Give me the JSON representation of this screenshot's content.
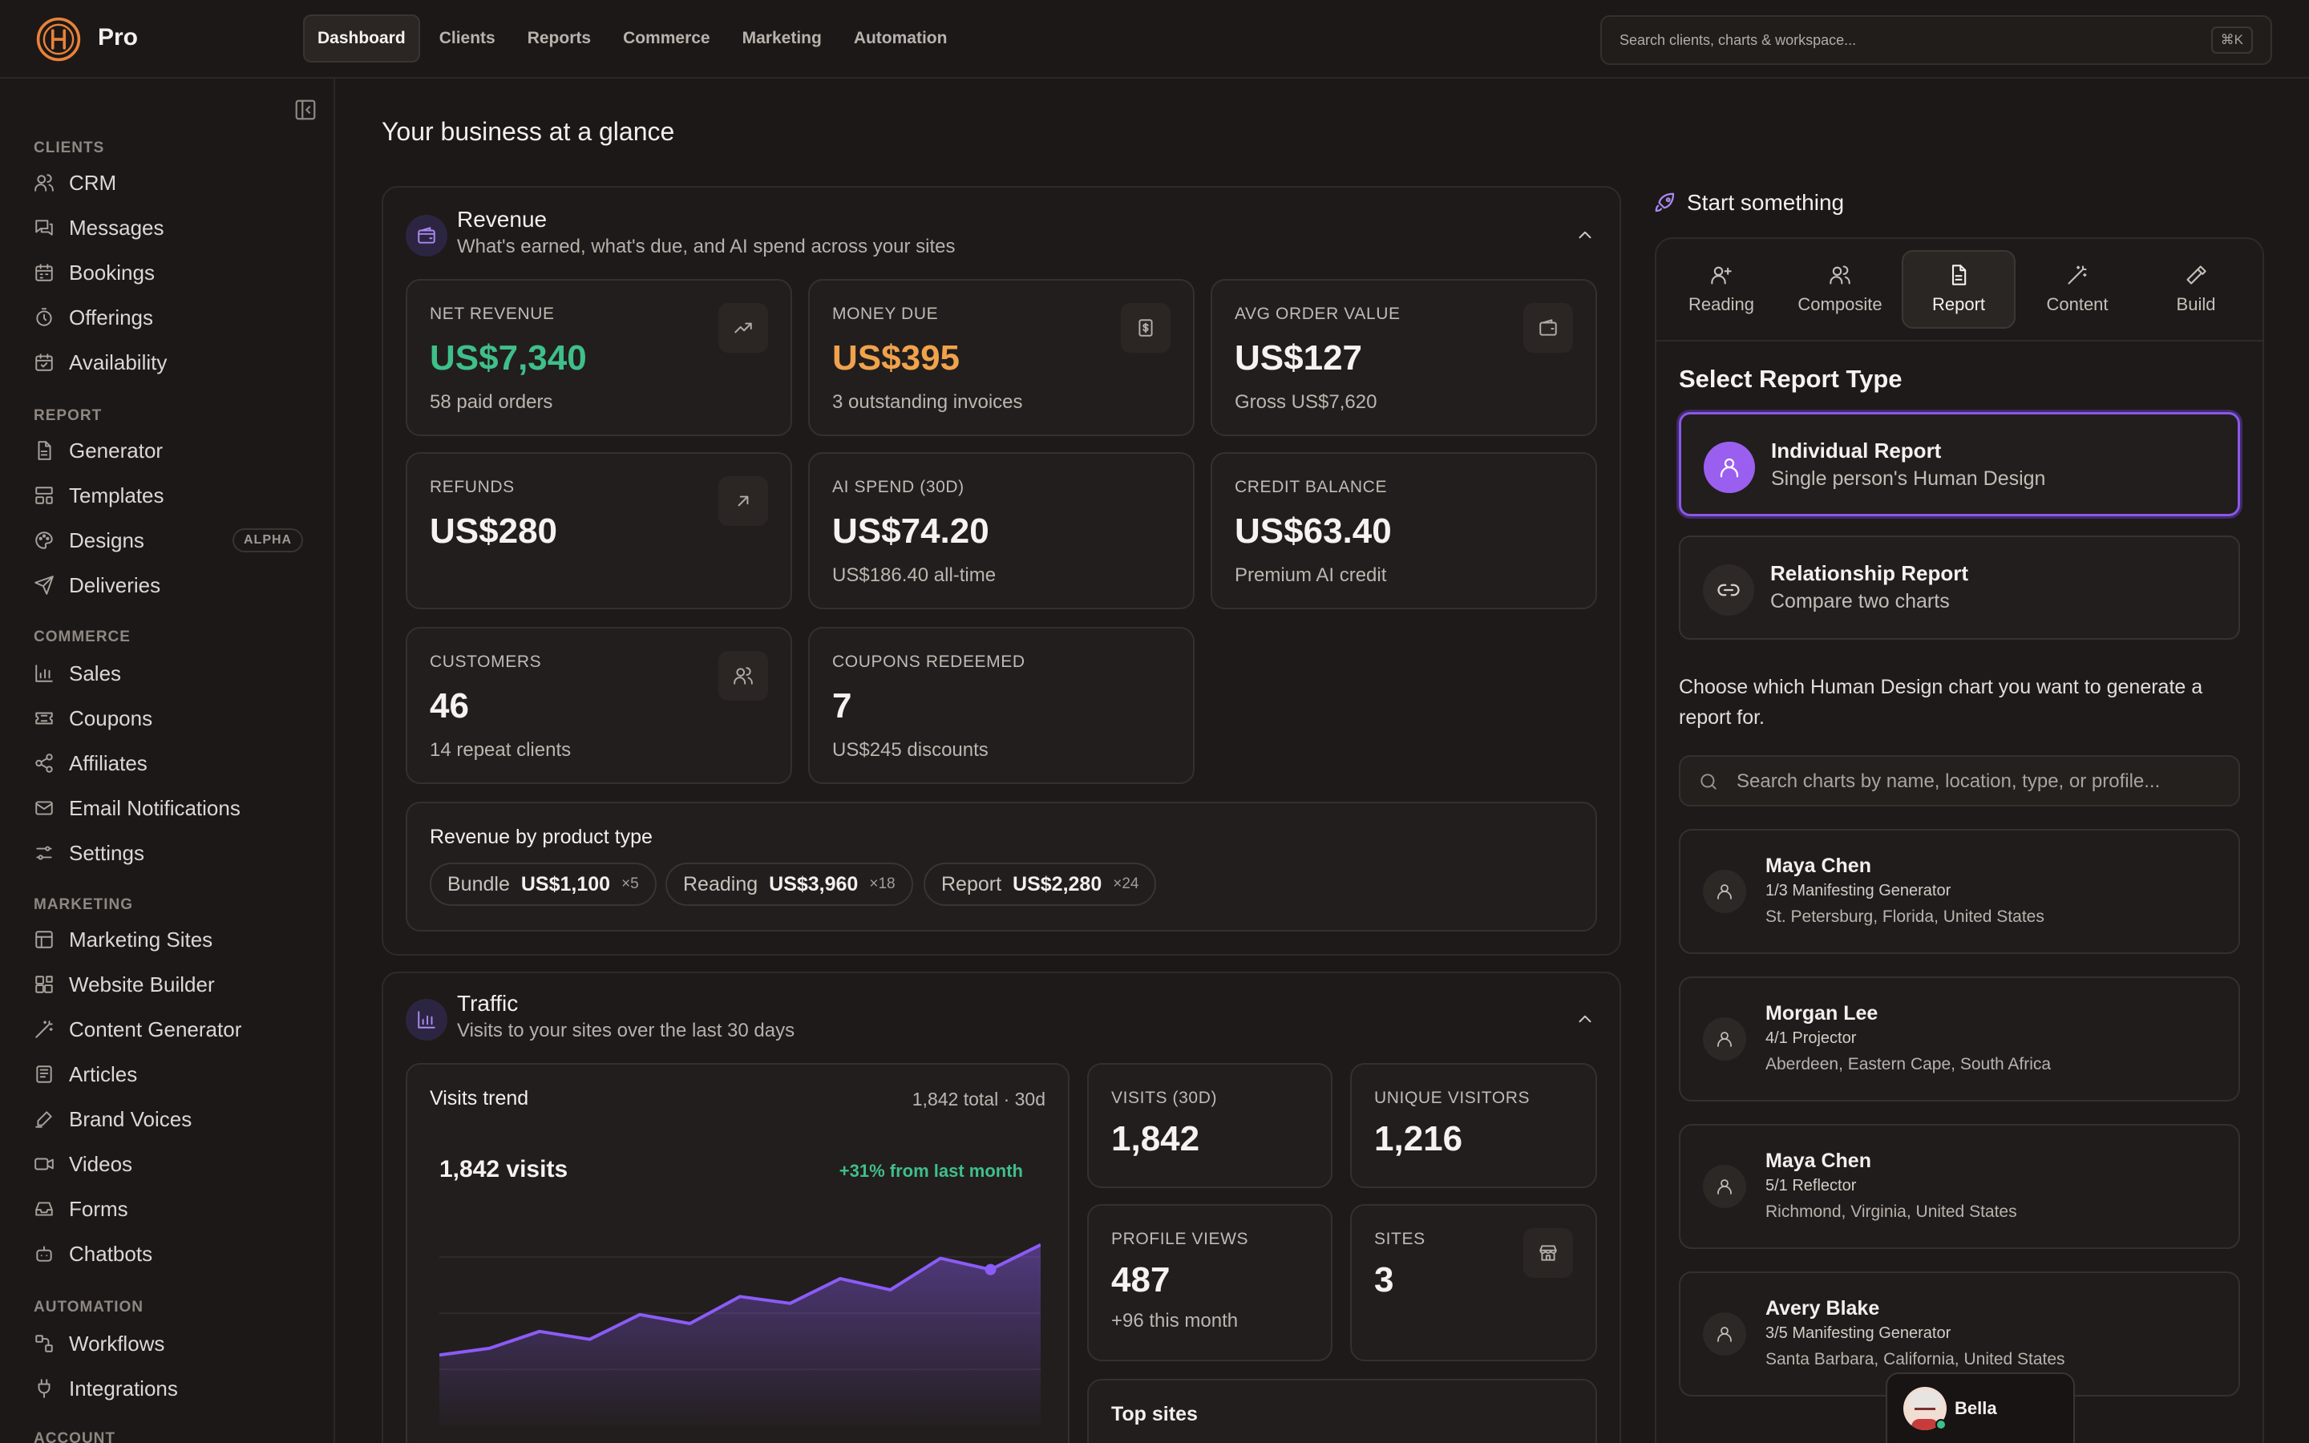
{
  "app": {
    "brand": "Pro"
  },
  "nav": {
    "items": [
      "Dashboard",
      "Clients",
      "Reports",
      "Commerce",
      "Marketing",
      "Automation"
    ]
  },
  "search": {
    "placeholder": "Search clients, charts & workspace...",
    "shortcut": "⌘K"
  },
  "sidebar": {
    "sections": {
      "clients": "CLIENTS",
      "report": "REPORT",
      "commerce": "COMMERCE",
      "marketing": "MARKETING",
      "automation": "AUTOMATION",
      "account": "ACCOUNT"
    },
    "clients": [
      "CRM",
      "Messages",
      "Bookings",
      "Offerings",
      "Availability"
    ],
    "report": [
      "Generator",
      "Templates",
      "Designs",
      "Deliveries"
    ],
    "designs_badge": "ALPHA",
    "commerce": [
      "Sales",
      "Coupons",
      "Affiliates",
      "Email Notifications",
      "Settings"
    ],
    "marketing": [
      "Marketing Sites",
      "Website Builder",
      "Content Generator",
      "Articles",
      "Brand Voices",
      "Videos",
      "Forms",
      "Chatbots"
    ],
    "automation": [
      "Workflows",
      "Integrations"
    ]
  },
  "main": {
    "title": "Your business at a glance",
    "revenue": {
      "title": "Revenue",
      "subtitle": "What's earned, what's due, and AI spend across your sites",
      "cards": [
        {
          "label": "NET REVENUE",
          "value": "US$7,340",
          "sub": "58 paid orders"
        },
        {
          "label": "MONEY DUE",
          "value": "US$395",
          "sub": "3 outstanding invoices"
        },
        {
          "label": "AVG ORDER VALUE",
          "value": "US$127",
          "sub": "Gross US$7,620"
        },
        {
          "label": "REFUNDS",
          "value": "US$280",
          "sub": ""
        },
        {
          "label": "AI SPEND (30D)",
          "value": "US$74.20",
          "sub": "US$186.40 all-time"
        },
        {
          "label": "CREDIT BALANCE",
          "value": "US$63.40",
          "sub": "Premium AI credit"
        },
        {
          "label": "CUSTOMERS",
          "value": "46",
          "sub": "14 repeat clients"
        },
        {
          "label": "COUPONS REDEEMED",
          "value": "7",
          "sub": "US$245 discounts"
        }
      ],
      "by_type": {
        "title": "Revenue by product type",
        "chips": [
          {
            "name": "Bundle",
            "amount": "US$1,100",
            "count": "×5"
          },
          {
            "name": "Reading",
            "amount": "US$3,960",
            "count": "×18"
          },
          {
            "name": "Report",
            "amount": "US$2,280",
            "count": "×24"
          }
        ]
      }
    },
    "traffic": {
      "title": "Traffic",
      "subtitle": "Visits to your sites over the last 30 days",
      "trend_title": "Visits trend",
      "trend_meta": "1,842 total · 30d",
      "headline": "1,842 visits",
      "change": "+31% from last month",
      "cards": [
        {
          "label": "VISITS (30D)",
          "value": "1,842",
          "sub": ""
        },
        {
          "label": "UNIQUE VISITORS",
          "value": "1,216",
          "sub": ""
        },
        {
          "label": "PROFILE VIEWS",
          "value": "487",
          "sub": "+96 this month"
        },
        {
          "label": "SITES",
          "value": "3",
          "sub": ""
        }
      ],
      "top_sites": "Top sites"
    }
  },
  "chart_data": {
    "type": "area",
    "title": "",
    "series": [
      {
        "values": [
          34,
          40,
          55,
          48,
          70,
          62,
          86,
          80,
          102,
          92,
          120,
          110,
          132
        ]
      }
    ],
    "highlight_index": 11,
    "color": "#8b5cf6"
  },
  "right": {
    "title": "Start something",
    "tabs": [
      "Reading",
      "Composite",
      "Report",
      "Content",
      "Build"
    ],
    "select_title": "Select Report Type",
    "types": [
      {
        "name": "Individual Report",
        "desc": "Single person's Human Design"
      },
      {
        "name": "Relationship Report",
        "desc": "Compare two charts"
      }
    ],
    "help": "Choose which Human Design chart you want to generate a report for.",
    "chart_search_placeholder": "Search charts by name, location, type, or profile...",
    "people": [
      {
        "name": "Maya Chen",
        "type": "1/3 Manifesting Generator",
        "loc": "St. Petersburg, Florida, United States"
      },
      {
        "name": "Morgan Lee",
        "type": "4/1 Projector",
        "loc": "Aberdeen, Eastern Cape, South Africa"
      },
      {
        "name": "Maya Chen",
        "type": "5/1 Reflector",
        "loc": "Richmond, Virginia, United States"
      },
      {
        "name": "Avery Blake",
        "type": "3/5 Manifesting Generator",
        "loc": "Santa Barbara, California, United States"
      }
    ],
    "assistant": "Bella"
  }
}
